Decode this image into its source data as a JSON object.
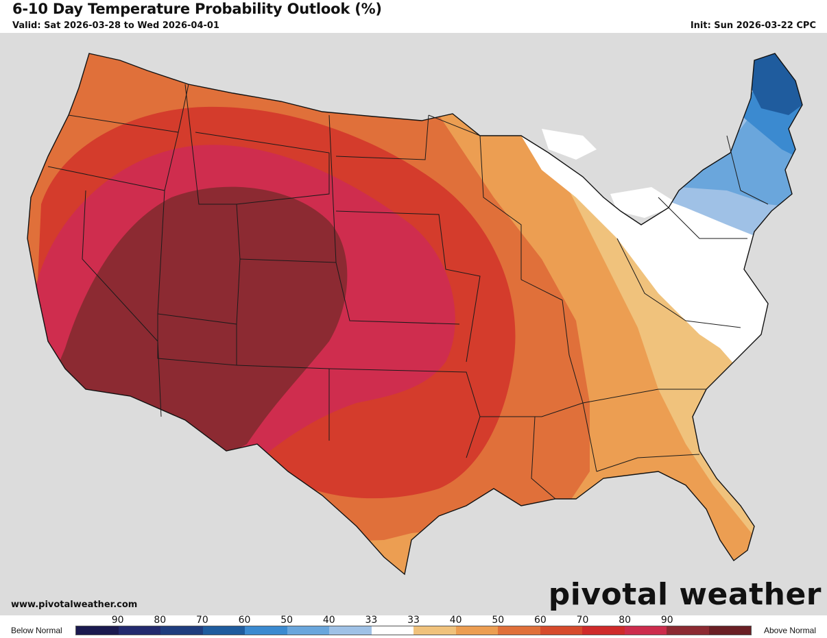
{
  "header": {
    "title": "6-10 Day Temperature Probability Outlook (%)",
    "valid": "Valid: Sat 2026-03-28 to Wed 2026-04-01",
    "init": "Init: Sun 2026-03-22 CPC"
  },
  "footer": {
    "site": "www.pivotalweather.com",
    "brand": "pivotal weather"
  },
  "legend": {
    "below_label": "Below Normal",
    "above_label": "Above Normal",
    "ticks": [
      "90",
      "80",
      "70",
      "60",
      "50",
      "40",
      "33",
      "33",
      "40",
      "50",
      "60",
      "70",
      "80",
      "90"
    ],
    "colors": [
      "#1b1a4f",
      "#232a6e",
      "#1f3d7e",
      "#1f5c9e",
      "#3b8ad0",
      "#6aa6dc",
      "#9fc1e6",
      "#ffffff",
      "#f0c27c",
      "#ec9e52",
      "#e0703a",
      "#d64a2c",
      "#cf2a2a",
      "#cc2c4c",
      "#8c2a32",
      "#6a1f24"
    ]
  },
  "map": {
    "colors": {
      "background": "#dcdcdc",
      "land": "#ffffff",
      "water": "#ffffff",
      "above_40": "#f0c27c",
      "above_50": "#ec9e52",
      "above_60": "#e0703a",
      "above_70": "#d43c2c",
      "above_80": "#cf2d4e",
      "above_90": "#8c2a32",
      "below_40": "#6aa6dc",
      "below_50": "#3b8ad0",
      "below_60": "#1f5c9e"
    }
  }
}
